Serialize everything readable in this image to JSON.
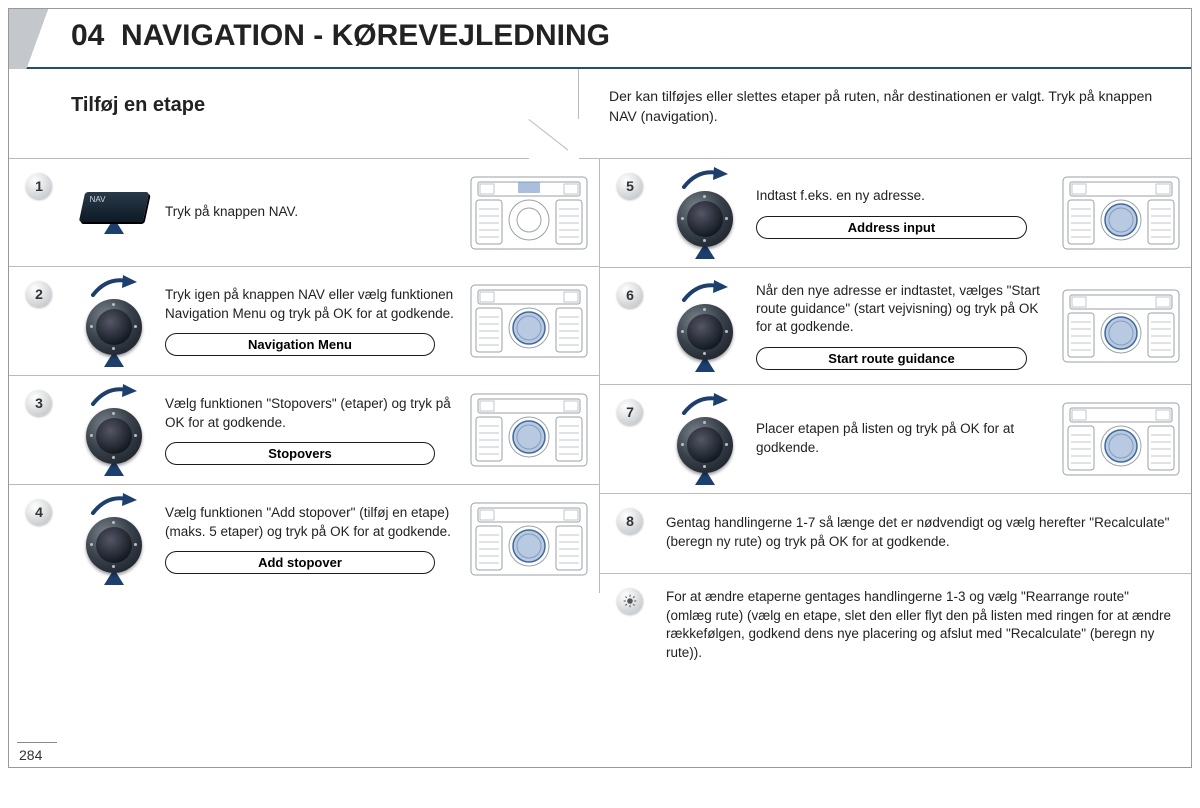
{
  "header": {
    "section_number": "04",
    "title": "NAVIGATION - KØREVEJLEDNING"
  },
  "intro": {
    "subtitle": "Tilføj en etape",
    "right_text": "Der kan tilføjes eller slettes etaper på ruten, når destinationen er valgt. Tryk på knappen NAV (navigation)."
  },
  "left_steps": [
    {
      "num": "1",
      "icon": "nav-key",
      "text": "Tryk på knappen NAV.",
      "pill": null,
      "thumb": "center"
    },
    {
      "num": "2",
      "icon": "dial-swoosh",
      "text": "Tryk igen på knappen NAV eller vælg funktionen Navigation Menu og tryk på OK for at godkende.",
      "pill": "Navigation Menu",
      "thumb": "dial"
    },
    {
      "num": "3",
      "icon": "dial-swoosh",
      "text": "Vælg funktionen \"Stopovers\" (etaper) og tryk på OK for at godkende.",
      "pill": "Stopovers",
      "thumb": "dial"
    },
    {
      "num": "4",
      "icon": "dial-swoosh",
      "text": "Vælg funktionen \"Add stopover\" (tilføj en etape) (maks. 5 etaper) og tryk på OK for at godkende.",
      "pill": "Add stopover",
      "thumb": "dial"
    }
  ],
  "right_steps": [
    {
      "num": "5",
      "icon": "dial-swoosh",
      "text": "Indtast f.eks. en ny adresse.",
      "pill": "Address input",
      "thumb": "dial"
    },
    {
      "num": "6",
      "icon": "dial-swoosh",
      "text": "Når den nye adresse er indtastet, vælges \"Start route guidance\" (start vejvisning) og tryk på OK for at godkende.",
      "pill": "Start route guidance",
      "thumb": "dial"
    },
    {
      "num": "7",
      "icon": "dial-swoosh",
      "text": "Placer etapen på listen og tryk på OK for at godkende.",
      "pill": null,
      "thumb": "dial"
    }
  ],
  "right_notes": [
    {
      "num": "8",
      "icon": "number",
      "text": "Gentag handlingerne 1-7 så længe det er nødvendigt og vælg herefter \"Recalculate\" (beregn ny rute) og tryk på OK for at godkende."
    },
    {
      "num": null,
      "icon": "tip",
      "text": "For at ændre etaperne gentages handlingerne 1-3 og vælg \"Rearrange route\" (omlæg rute) (vælg en etape, slet den eller flyt den på listen med ringen for at ændre rækkefølgen, godkend dens nye placering og afslut med \"Recalculate\" (beregn ny rute))."
    }
  ],
  "page_number": "284",
  "colors": {
    "accent": "#224a7a",
    "arrow": "#1b3f6e",
    "badge_grad_light": "#e3e5e7",
    "badge_grad_dark": "#b9bdc0",
    "thumb_line": "#9aa2aa",
    "thumb_blue": "#6f95c4"
  }
}
